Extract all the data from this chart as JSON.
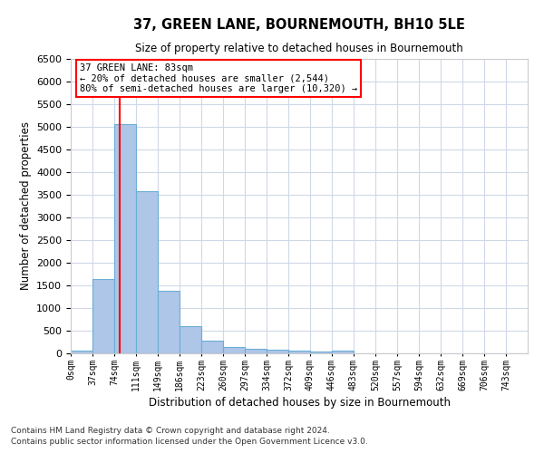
{
  "title": "37, GREEN LANE, BOURNEMOUTH, BH10 5LE",
  "subtitle": "Size of property relative to detached houses in Bournemouth",
  "xlabel": "Distribution of detached houses by size in Bournemouth",
  "ylabel": "Number of detached properties",
  "footnote1": "Contains HM Land Registry data © Crown copyright and database right 2024.",
  "footnote2": "Contains public sector information licensed under the Open Government Licence v3.0.",
  "bar_labels": [
    "0sqm",
    "37sqm",
    "74sqm",
    "111sqm",
    "149sqm",
    "186sqm",
    "223sqm",
    "260sqm",
    "297sqm",
    "334sqm",
    "372sqm",
    "409sqm",
    "446sqm",
    "483sqm",
    "520sqm",
    "557sqm",
    "594sqm",
    "632sqm",
    "669sqm",
    "706sqm",
    "743sqm"
  ],
  "bar_values": [
    70,
    1640,
    5070,
    3580,
    1390,
    610,
    290,
    150,
    100,
    75,
    55,
    50,
    55,
    0,
    0,
    0,
    0,
    0,
    0,
    0,
    0
  ],
  "bar_color": "#aec6e8",
  "bar_edge_color": "#6baed6",
  "vline_x": 83,
  "vline_color": "red",
  "annotation_text_line1": "37 GREEN LANE: 83sqm",
  "annotation_text_line2": "← 20% of detached houses are smaller (2,544)",
  "annotation_text_line3": "80% of semi-detached houses are larger (10,320) →",
  "ylim": [
    0,
    6500
  ],
  "yticks": [
    0,
    500,
    1000,
    1500,
    2000,
    2500,
    3000,
    3500,
    4000,
    4500,
    5000,
    5500,
    6000,
    6500
  ],
  "bin_width": 37,
  "background_color": "#ffffff",
  "grid_color": "#d0d8e8"
}
